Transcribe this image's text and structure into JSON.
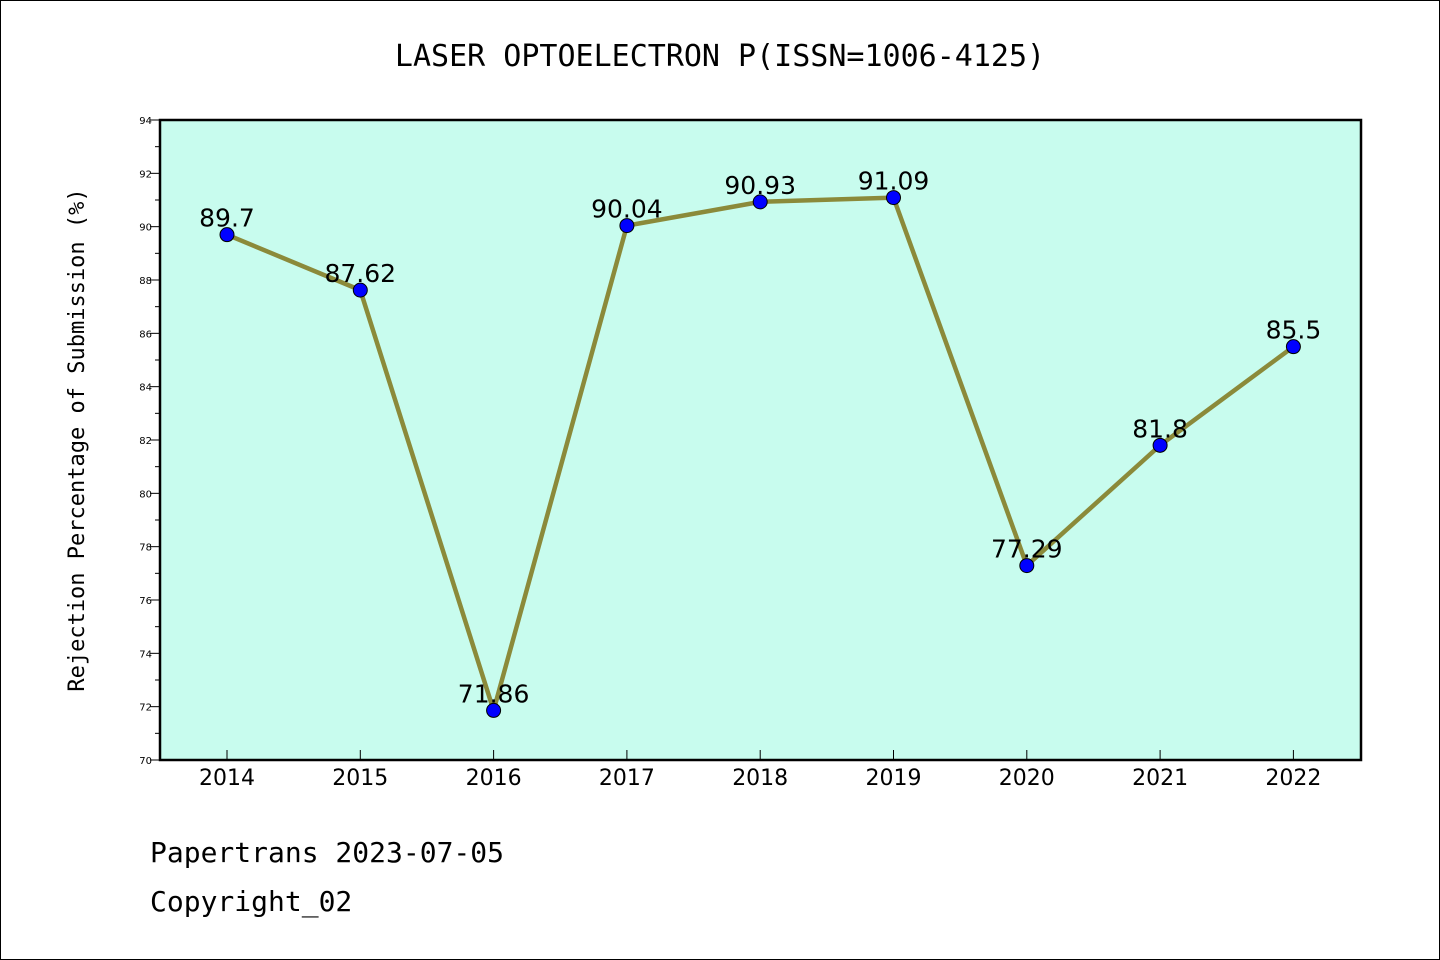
{
  "footer": {
    "line1": "Papertrans 2023-07-05",
    "line2": "Copyright_02"
  },
  "chart_data": {
    "type": "line",
    "title": "LASER OPTOELECTRON P(ISSN=1006-4125)",
    "xlabel": "",
    "ylabel": "Rejection Percentage of Submission (%)",
    "categories": [
      "2014",
      "2015",
      "2016",
      "2017",
      "2018",
      "2019",
      "2020",
      "2021",
      "2022"
    ],
    "series": [
      {
        "values": [
          89.7,
          87.62,
          71.86,
          90.04,
          90.93,
          91.09,
          77.29,
          81.8,
          85.5
        ],
        "data_labels": [
          "89.7",
          "87.62",
          "71.86",
          "90.04",
          "90.93",
          "91.09",
          "77.29",
          "81.8",
          "85.5"
        ]
      }
    ],
    "ylim": [
      70,
      94
    ],
    "yticks": [
      70,
      72,
      74,
      76,
      78,
      80,
      82,
      84,
      86,
      88,
      90,
      92,
      94
    ],
    "grid": false,
    "colors": {
      "plot_background": "#c8fcee",
      "line": "#8b8a3a",
      "marker": "#0000ff"
    }
  }
}
